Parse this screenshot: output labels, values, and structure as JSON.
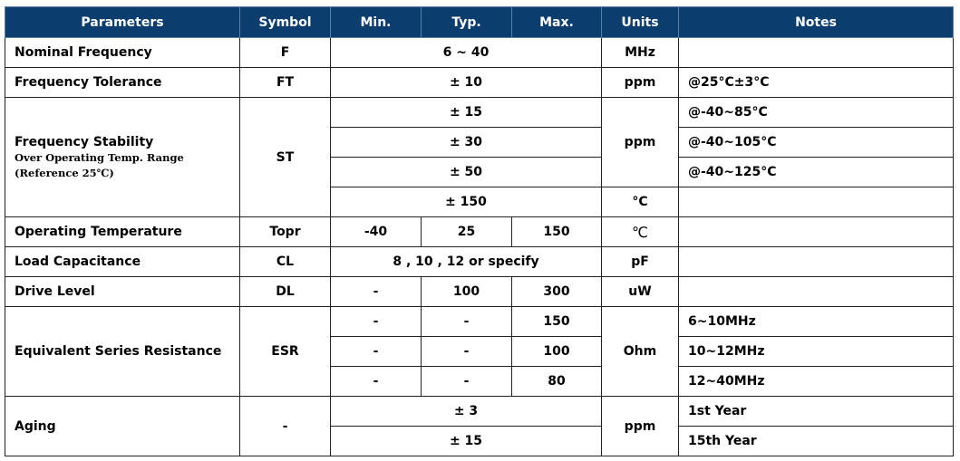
{
  "headers": [
    "Parameters",
    "Symbol",
    "Min.",
    "Typ.",
    "Max.",
    "Units",
    "Notes"
  ],
  "rows": {
    "nominal_frequency": {
      "param": "Nominal Frequency",
      "symbol": "F",
      "value": "6 ~ 40",
      "unit": "MHz",
      "note": ""
    },
    "frequency_tolerance": {
      "param": "Frequency Tolerance",
      "symbol": "FT",
      "value": "± 10",
      "unit": "ppm",
      "note": "@25°C±3°C"
    },
    "frequency_stability": {
      "param": "Frequency Stability",
      "sub1": "Over Operating Temp. Range",
      "sub2": "(Reference 25℃)",
      "symbol": "ST",
      "values": [
        "± 15",
        "± 30",
        "± 50",
        "± 150"
      ],
      "unit": "ppm",
      "unit_last": "°C",
      "notes": [
        "@-40~85°C",
        "@-40~105°C",
        "@-40~125°C",
        ""
      ]
    },
    "operating_temperature": {
      "param": "Operating Temperature",
      "symbol": "Topr",
      "min": "-40",
      "typ": "25",
      "max": "150",
      "unit": "℃",
      "note": ""
    },
    "load_capacitance": {
      "param": "Load Capacitance",
      "symbol": "CL",
      "value": "8 , 10 , 12 or specify",
      "unit": "pF",
      "note": ""
    },
    "drive_level": {
      "param": "Drive Level",
      "symbol": "DL",
      "min": "-",
      "typ": "100",
      "max": "300",
      "unit": "uW",
      "note": ""
    },
    "esr": {
      "param": "Equivalent Series Resistance",
      "symbol": "ESR",
      "min": [
        "-",
        "-",
        "-"
      ],
      "typ": [
        "-",
        "-",
        "-"
      ],
      "max": [
        "150",
        "100",
        "80"
      ],
      "unit": "Ohm",
      "notes": [
        "6~10MHz",
        "10~12MHz",
        "12~40MHz"
      ]
    },
    "aging": {
      "param": "Aging",
      "symbol": "-",
      "values": [
        "± 3",
        "± 15"
      ],
      "unit": "ppm",
      "notes": [
        "1st Year",
        "15th Year"
      ]
    }
  },
  "colors": {
    "header_bg": "#0b3d6e",
    "header_text": "#ffffff",
    "border": "#222222"
  }
}
